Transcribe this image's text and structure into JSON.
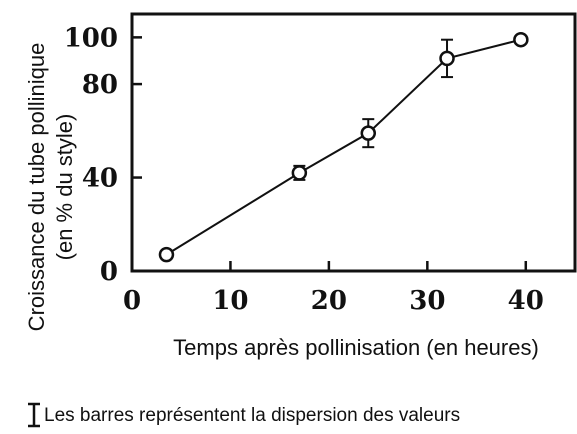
{
  "chart_data": {
    "type": "line",
    "title": "",
    "xlabel": "Temps après pollinisation (en heures)",
    "ylabel_line1": "Croissance du tube pollinique",
    "ylabel_line2": "(en % du style)",
    "xlim": [
      0,
      45
    ],
    "ylim": [
      0,
      110
    ],
    "x_ticks": [
      0,
      10,
      20,
      30,
      40
    ],
    "y_ticks": [
      0,
      40,
      80,
      100
    ],
    "grid": false,
    "series": [
      {
        "x": [
          3.5,
          17,
          24,
          32,
          39.5
        ],
        "y": [
          7,
          42,
          59,
          91,
          99
        ],
        "error": [
          0,
          3,
          6,
          8,
          0
        ]
      }
    ],
    "legend_note": "Les barres représentent la dispersion des valeurs"
  }
}
